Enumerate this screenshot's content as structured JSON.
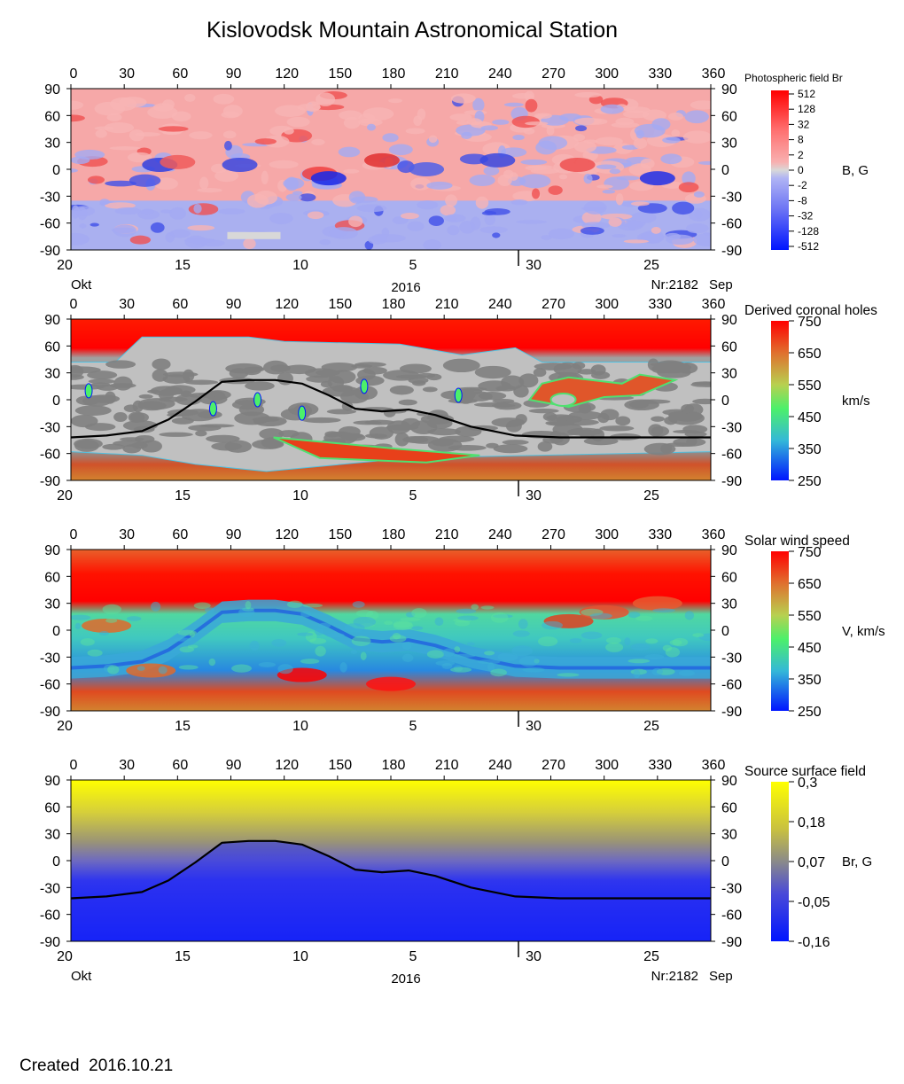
{
  "title": "Kislovodsk Mountain Astronomical Station",
  "created": "Created  2016.10.21",
  "colors": {
    "red": "#ff0000",
    "orange": "#d2832f",
    "green": "#4cf06a",
    "cyan": "#34c8d8",
    "blue": "#0015ff",
    "gray_dark": "#808080",
    "gray_light": "#c0c0c0",
    "pink": "#f8a0a0",
    "lavender": "#a8acf0",
    "yellow": "#ffff00",
    "neutral_line": "#000000"
  },
  "chart_data": [
    {
      "type": "heatmap",
      "id": "photospheric",
      "title": "Photospheric field Br",
      "colorbar_label": "B, G",
      "colorbar_ticks": [
        "512",
        "128",
        "32",
        "8",
        "2",
        "0",
        "-2",
        "-8",
        "-32",
        "-128",
        "-512"
      ],
      "x_top_ticks": [
        "0",
        "30",
        "60",
        "90",
        "120",
        "150",
        "180",
        "210",
        "240",
        "270",
        "300",
        "330",
        "360"
      ],
      "x_range": [
        0,
        360
      ],
      "y_ticks": [
        "90",
        "60",
        "30",
        "0",
        "-30",
        "-60",
        "-90"
      ],
      "y_range": [
        -90,
        90
      ],
      "x_bottom_ticks": [
        "20",
        "15",
        "10",
        "5",
        "30",
        "25"
      ],
      "bottom_labels": {
        "left_month": "Okt",
        "year": "2016",
        "rotation": "Nr:2182",
        "right_month": "Sep"
      }
    },
    {
      "type": "heatmap",
      "id": "coronal_holes",
      "title": "Derived coronal holes",
      "colorbar_label": "km/s",
      "colorbar_ticks": [
        "750",
        "650",
        "550",
        "450",
        "350",
        "250"
      ],
      "x_top_ticks": [
        "0",
        "30",
        "60",
        "90",
        "120",
        "150",
        "180",
        "210",
        "240",
        "270",
        "300",
        "330",
        "360"
      ],
      "x_range": [
        0,
        360
      ],
      "y_ticks": [
        "90",
        "60",
        "30",
        "0",
        "-30",
        "-60",
        "-90"
      ],
      "y_range": [
        -90,
        90
      ],
      "x_bottom_ticks": [
        "20",
        "15",
        "10",
        "5",
        "30",
        "25"
      ],
      "neutral_line": {
        "lon": [
          0,
          20,
          40,
          55,
          70,
          85,
          100,
          115,
          130,
          145,
          160,
          175,
          190,
          205,
          225,
          250,
          275,
          300,
          330,
          360
        ],
        "lat": [
          -42,
          -40,
          -35,
          -22,
          -2,
          20,
          22,
          22,
          18,
          5,
          -10,
          -13,
          -11,
          -17,
          -30,
          -40,
          -42,
          -42,
          -42,
          -42
        ]
      }
    },
    {
      "type": "heatmap",
      "id": "solar_wind",
      "title": "Solar wind speed",
      "colorbar_label": "V, km/s",
      "colorbar_ticks": [
        "750",
        "650",
        "550",
        "450",
        "350",
        "250"
      ],
      "x_top_ticks": [
        "0",
        "30",
        "60",
        "90",
        "120",
        "150",
        "180",
        "210",
        "240",
        "270",
        "300",
        "330",
        "360"
      ],
      "x_range": [
        0,
        360
      ],
      "y_ticks": [
        "90",
        "60",
        "30",
        "0",
        "-30",
        "-60",
        "-90"
      ],
      "y_range": [
        -90,
        90
      ],
      "x_bottom_ticks": [
        "20",
        "15",
        "10",
        "5",
        "30",
        "25"
      ]
    },
    {
      "type": "heatmap",
      "id": "source_surface",
      "title": "Source surface field",
      "colorbar_label": "Br, G",
      "colorbar_ticks": [
        "0,3",
        "0,18",
        "0,07",
        "-0,05",
        "-0,16"
      ],
      "x_top_ticks": [
        "0",
        "30",
        "60",
        "90",
        "120",
        "150",
        "180",
        "210",
        "240",
        "270",
        "300",
        "330",
        "360"
      ],
      "x_range": [
        0,
        360
      ],
      "y_ticks": [
        "90",
        "60",
        "30",
        "0",
        "-30",
        "-60",
        "-90"
      ],
      "y_range": [
        -90,
        90
      ],
      "x_bottom_ticks": [
        "20",
        "15",
        "10",
        "5",
        "30",
        "25"
      ],
      "bottom_labels": {
        "left_month": "Okt",
        "year": "2016",
        "rotation": "Nr:2182",
        "right_month": "Sep"
      },
      "neutral_line": {
        "lon": [
          0,
          20,
          40,
          55,
          70,
          85,
          100,
          115,
          130,
          145,
          160,
          175,
          190,
          205,
          225,
          250,
          275,
          300,
          330,
          360
        ],
        "lat": [
          -42,
          -40,
          -35,
          -22,
          -2,
          20,
          22,
          22,
          18,
          5,
          -10,
          -13,
          -11,
          -17,
          -30,
          -40,
          -42,
          -42,
          -42,
          -42
        ]
      }
    }
  ]
}
